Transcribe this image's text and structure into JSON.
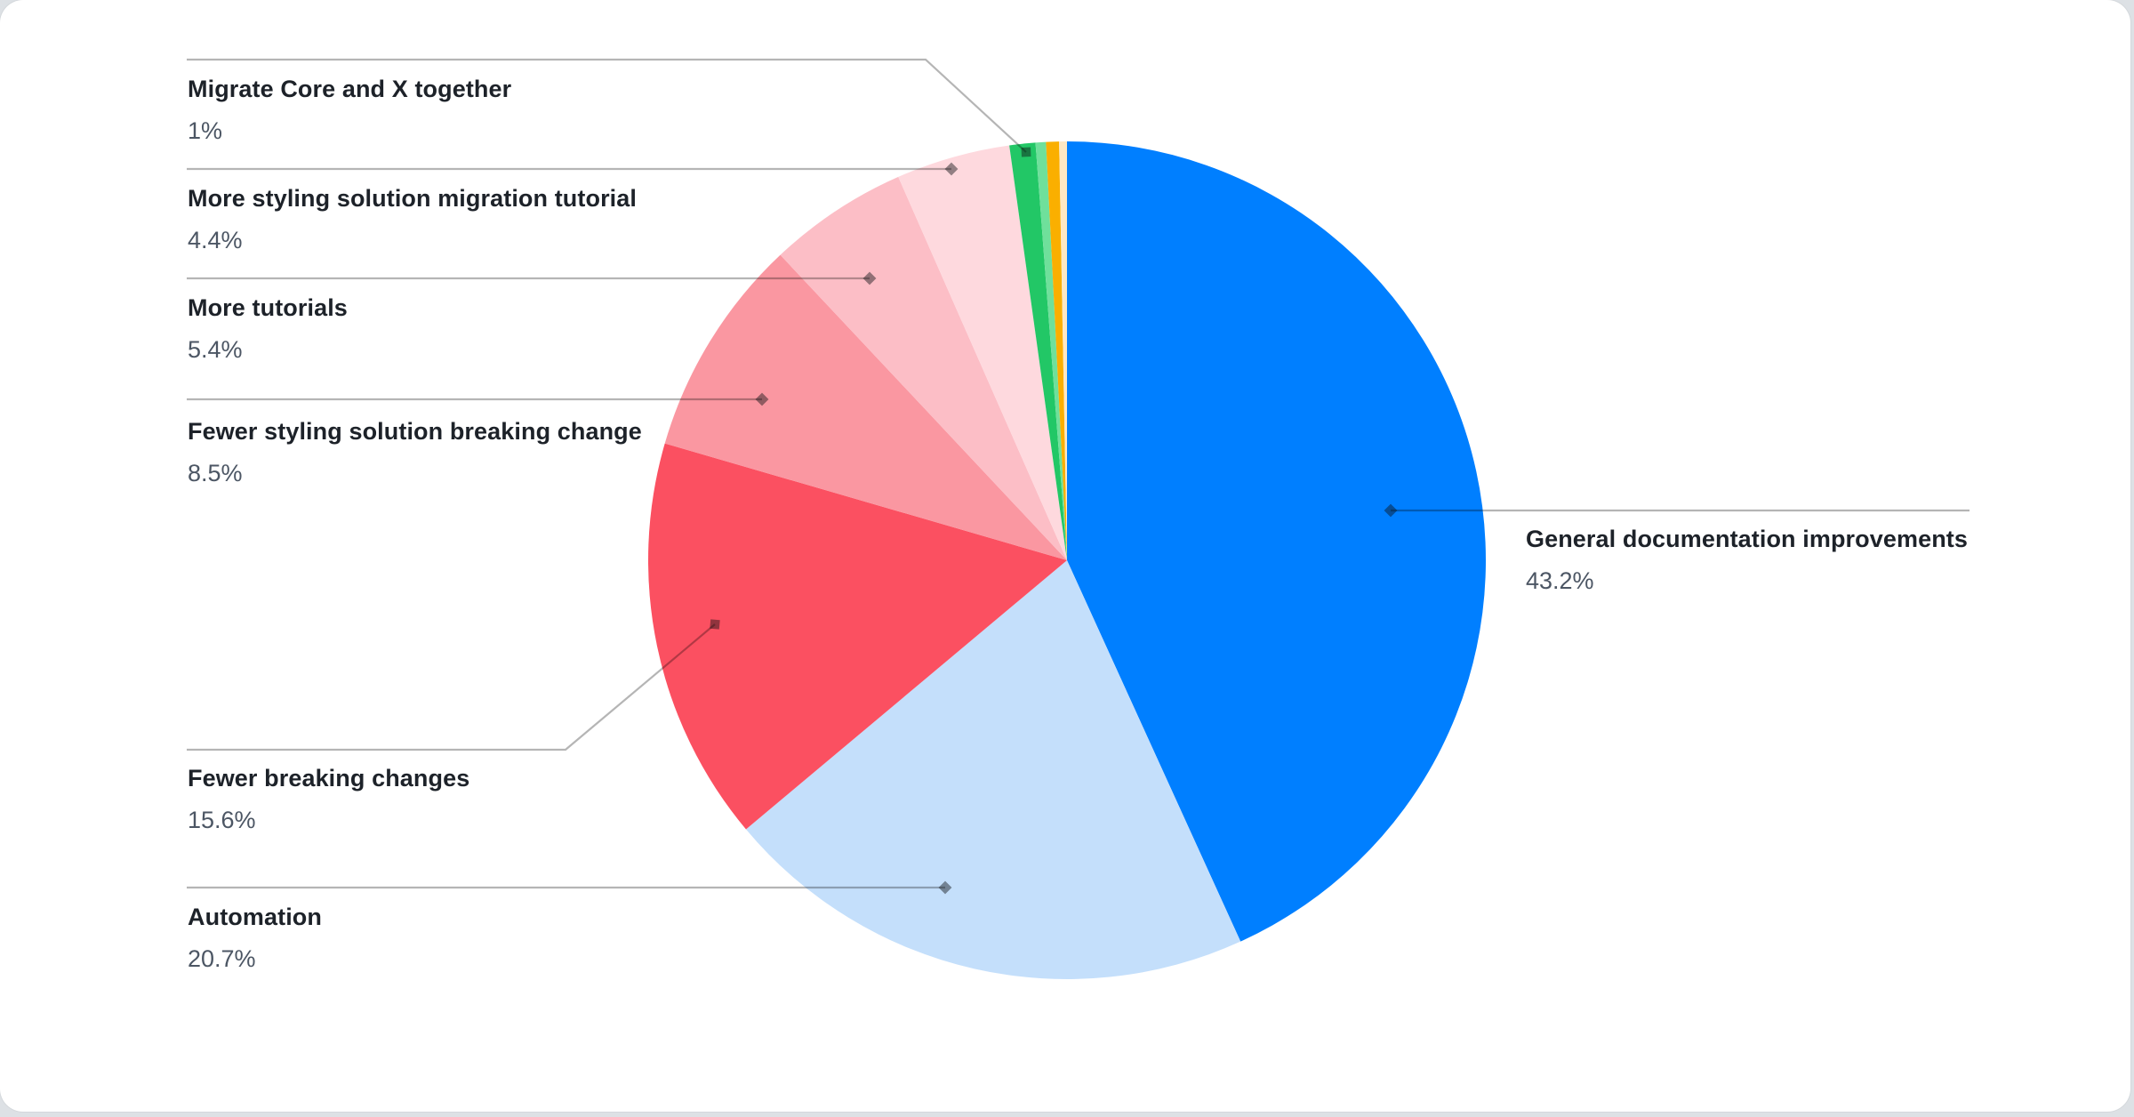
{
  "canvas": {
    "page_background": "#dde1e5",
    "card_background": "#ffffff"
  },
  "chart_data": {
    "type": "pie",
    "title": "",
    "unit": "%",
    "start_angle_deg": 0,
    "direction": "clockwise",
    "legend_position": "callouts",
    "slices": [
      {
        "label": "General documentation improvements",
        "value": 43.2,
        "display": "43.2%",
        "color": "#007FFF"
      },
      {
        "label": "Automation",
        "value": 20.7,
        "display": "20.7%",
        "color": "#C4DFFB"
      },
      {
        "label": "Fewer breaking changes",
        "value": 15.6,
        "display": "15.6%",
        "color": "#FB5061"
      },
      {
        "label": "Fewer styling solution breaking change",
        "value": 8.5,
        "display": "8.5%",
        "color": "#FA97A1"
      },
      {
        "label": "More tutorials",
        "value": 5.4,
        "display": "5.4%",
        "color": "#FCBEC6"
      },
      {
        "label": "More styling solution migration tutorial",
        "value": 4.4,
        "display": "4.4%",
        "color": "#FED9DE"
      },
      {
        "label": "Migrate Core and X together",
        "value": 1,
        "display": "1%",
        "color": "#22C766"
      },
      {
        "label": "",
        "value": 0.4,
        "display": "",
        "color": "#6FE09B"
      },
      {
        "label": "",
        "value": 0.5,
        "display": "",
        "color": "#FAAF00"
      },
      {
        "label": "",
        "value": 0.3,
        "display": "",
        "color": "#FDE8C4"
      }
    ],
    "colors": {
      "leader_line": "rgba(0,0,0,0.29)",
      "marker": "rgba(15,18,20,0.45)",
      "label_text": "#1d2229",
      "value_text": "#4c5664"
    }
  }
}
